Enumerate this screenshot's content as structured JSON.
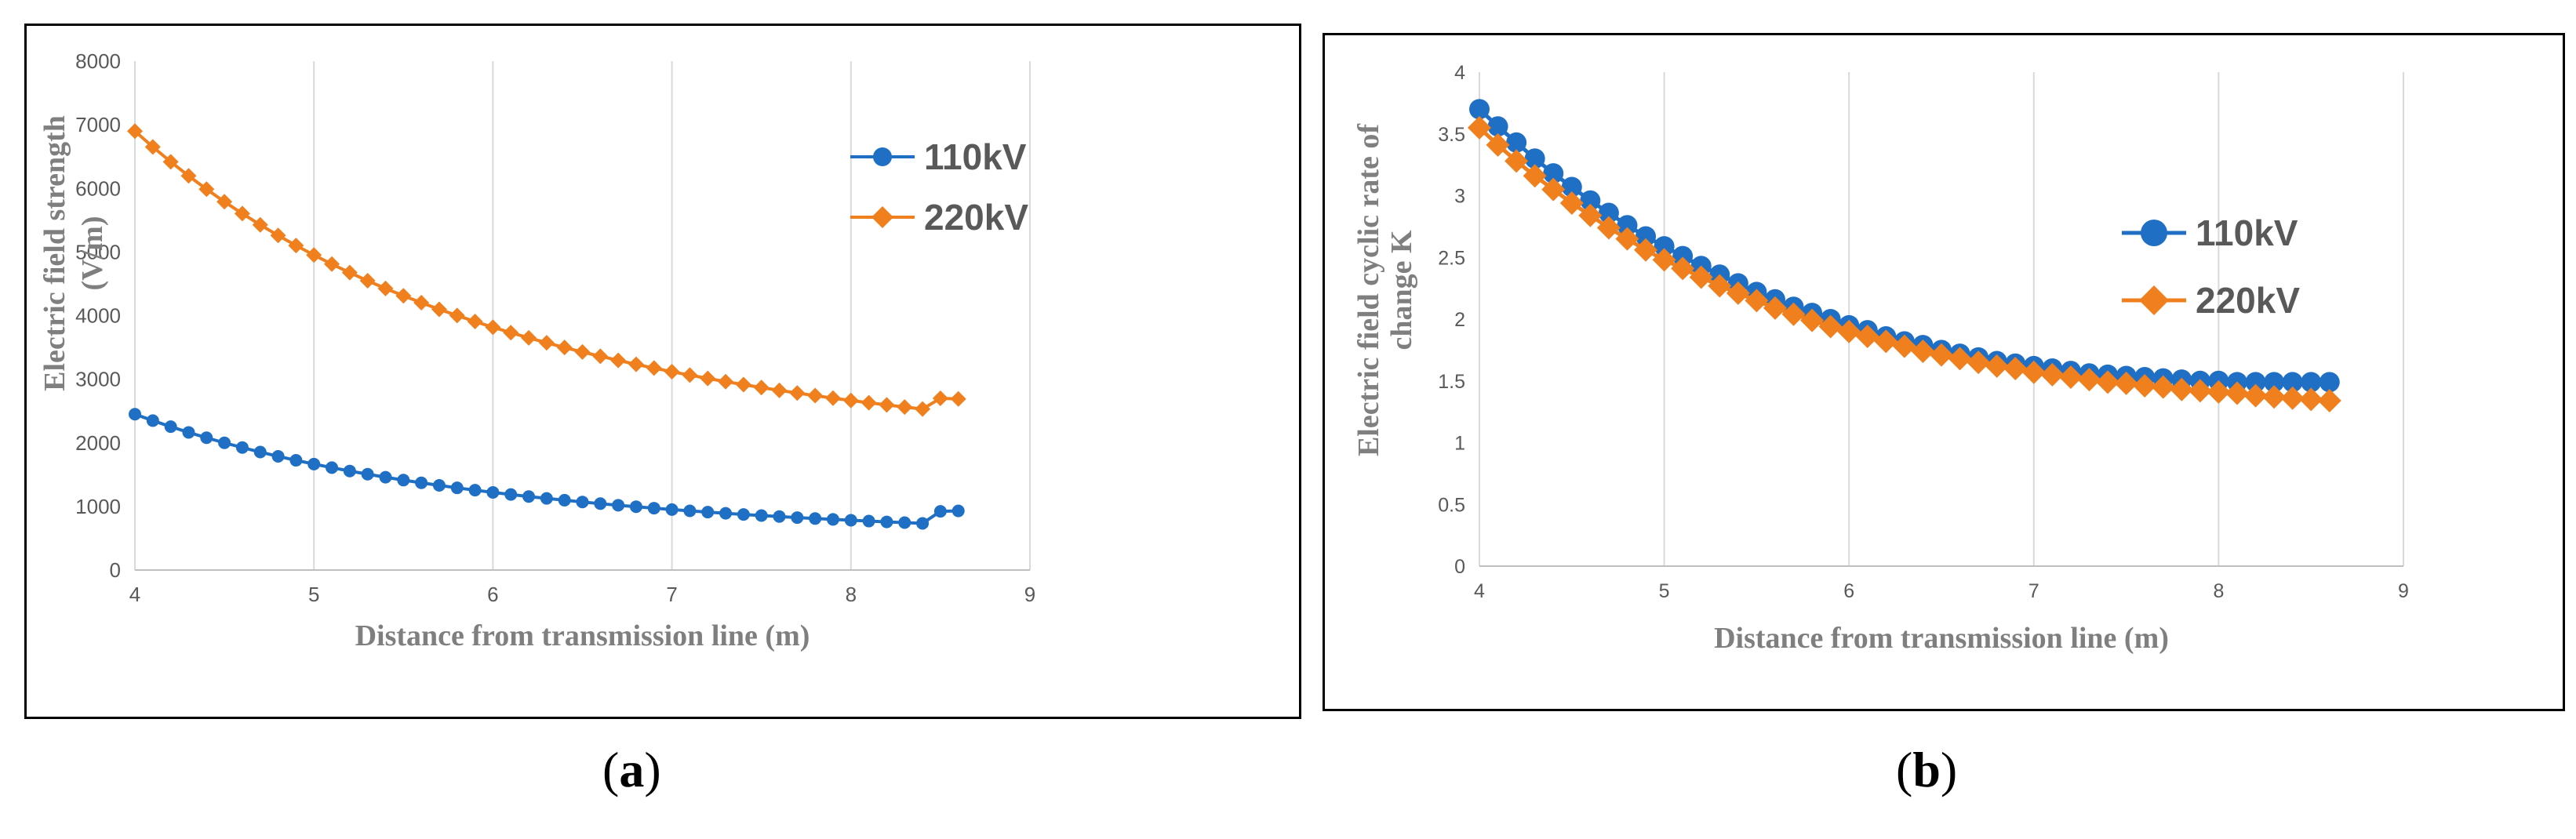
{
  "chart_data": [
    {
      "type": "line",
      "panel_label": "a",
      "xlabel": "Distance from transmission line (m)",
      "ylabel": "Electric field strength (V/m)",
      "ylabel_lines": [
        "Electric field strength",
        "(V/m)"
      ],
      "xlim": [
        4,
        9
      ],
      "ylim": [
        0,
        8000
      ],
      "x_ticks": [
        "4",
        "5",
        "6",
        "7",
        "8",
        "9"
      ],
      "y_ticks": [
        "0",
        "1000",
        "2000",
        "3000",
        "4000",
        "5000",
        "6000",
        "7000",
        "8000"
      ],
      "grid": "vertical",
      "legend": "upper-right",
      "x": [
        4.0,
        4.1,
        4.2,
        4.3,
        4.4,
        4.5,
        4.6,
        4.7,
        4.8,
        4.9,
        5.0,
        5.1,
        5.2,
        5.3,
        5.4,
        5.5,
        5.6,
        5.7,
        5.8,
        5.9,
        6.0,
        6.1,
        6.2,
        6.3,
        6.4,
        6.5,
        6.6,
        6.7,
        6.8,
        6.9,
        7.0,
        7.1,
        7.2,
        7.3,
        7.4,
        7.5,
        7.6,
        7.7,
        7.8,
        7.9,
        8.0,
        8.1,
        8.2,
        8.3,
        8.4,
        8.5,
        8.6
      ],
      "series": [
        {
          "name": "110kV",
          "color": "#1F6FC5",
          "marker": "circle",
          "values": [
            2450,
            2349,
            2254,
            2164,
            2080,
            2000,
            1926,
            1855,
            1788,
            1725,
            1666,
            1610,
            1557,
            1507,
            1459,
            1414,
            1371,
            1331,
            1292,
            1256,
            1221,
            1188,
            1156,
            1126,
            1098,
            1070,
            1044,
            1019,
            996,
            973,
            951,
            931,
            911,
            892,
            874,
            857,
            841,
            825,
            810,
            796,
            783,
            770,
            757,
            746,
            734,
            923,
            930
          ]
        },
        {
          "name": "220kV",
          "color": "#F07F1E",
          "marker": "diamond",
          "values": [
            6900,
            6652,
            6418,
            6197,
            5988,
            5790,
            5604,
            5427,
            5260,
            5102,
            4952,
            4810,
            4676,
            4548,
            4427,
            4312,
            4203,
            4099,
            4001,
            3907,
            3817,
            3732,
            3651,
            3573,
            3499,
            3428,
            3361,
            3296,
            3234,
            3175,
            3118,
            3064,
            3012,
            2962,
            2915,
            2869,
            2825,
            2783,
            2742,
            2703,
            2666,
            2630,
            2596,
            2563,
            2531,
            2700,
            2690
          ]
        }
      ]
    },
    {
      "type": "line",
      "panel_label": "b",
      "xlabel": "Distance from transmission line (m)",
      "ylabel": "Electric field cyclic rate of change K",
      "ylabel_lines": [
        "Electric field cyclic rate of",
        "change K"
      ],
      "xlim": [
        4,
        9
      ],
      "ylim": [
        0,
        4
      ],
      "x_ticks": [
        "4",
        "5",
        "6",
        "7",
        "8",
        "9"
      ],
      "y_ticks": [
        "0",
        "0.5",
        "1",
        "1.5",
        "2",
        "2.5",
        "3",
        "3.5",
        "4"
      ],
      "grid": "vertical",
      "legend": "right",
      "x": [
        4.0,
        4.1,
        4.2,
        4.3,
        4.4,
        4.5,
        4.6,
        4.7,
        4.8,
        4.9,
        5.0,
        5.1,
        5.2,
        5.3,
        5.4,
        5.5,
        5.6,
        5.7,
        5.8,
        5.9,
        6.0,
        6.1,
        6.2,
        6.3,
        6.4,
        6.5,
        6.6,
        6.7,
        6.8,
        6.9,
        7.0,
        7.1,
        7.2,
        7.3,
        7.4,
        7.5,
        7.6,
        7.7,
        7.8,
        7.9,
        8.0,
        8.1,
        8.2,
        8.3,
        8.4,
        8.5,
        8.6
      ],
      "series": [
        {
          "name": "110kV",
          "color": "#1F6FC5",
          "marker": "circle",
          "values": [
            3.7,
            3.56,
            3.43,
            3.3,
            3.18,
            3.07,
            2.96,
            2.86,
            2.76,
            2.67,
            2.59,
            2.51,
            2.43,
            2.36,
            2.29,
            2.22,
            2.16,
            2.1,
            2.05,
            2.0,
            1.95,
            1.91,
            1.86,
            1.82,
            1.79,
            1.75,
            1.72,
            1.69,
            1.66,
            1.64,
            1.62,
            1.6,
            1.58,
            1.56,
            1.55,
            1.54,
            1.53,
            1.52,
            1.51,
            1.5,
            1.5,
            1.49,
            1.49,
            1.49,
            1.49,
            1.49,
            1.49
          ]
        },
        {
          "name": "220kV",
          "color": "#F07F1E",
          "marker": "diamond",
          "values": [
            3.55,
            3.41,
            3.28,
            3.16,
            3.05,
            2.94,
            2.84,
            2.74,
            2.65,
            2.56,
            2.48,
            2.41,
            2.34,
            2.27,
            2.21,
            2.15,
            2.09,
            2.04,
            1.99,
            1.94,
            1.9,
            1.86,
            1.82,
            1.78,
            1.74,
            1.71,
            1.68,
            1.65,
            1.62,
            1.6,
            1.57,
            1.55,
            1.53,
            1.51,
            1.49,
            1.48,
            1.46,
            1.45,
            1.43,
            1.42,
            1.41,
            1.4,
            1.38,
            1.37,
            1.36,
            1.35,
            1.34
          ]
        }
      ]
    }
  ]
}
